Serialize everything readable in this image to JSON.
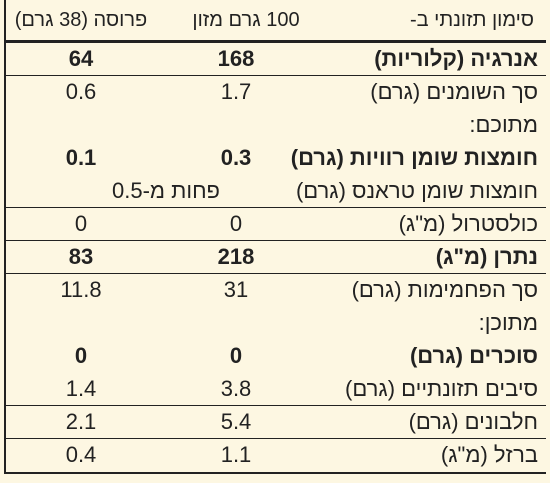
{
  "header": {
    "label": "סימון תזונתי ב-",
    "per100": "100 גרם מזון",
    "perSlice": "פרוסה (38 גרם)"
  },
  "rows": [
    {
      "label": "אנרגיה (קלוריות)",
      "per100": "168",
      "perSlice": "64",
      "bold": true
    },
    {
      "label": "סך השומנים (גרם)",
      "per100": "1.7",
      "perSlice": "0.6"
    },
    {
      "label": "מתוכם:"
    },
    {
      "label": "חומצות שומן רוויות (גרם)",
      "per100": "0.3",
      "perSlice": "0.1",
      "bold": true
    },
    {
      "label": "חומצות שומן טראנס (גרם)",
      "both": "פחות מ-0.5"
    },
    {
      "label": "כולסטרול (מ\"ג)",
      "per100": "0",
      "perSlice": "0"
    },
    {
      "label": "נתרן (מ\"ג)",
      "per100": "218",
      "perSlice": "83",
      "bold": true
    },
    {
      "label": "סך הפחמימות (גרם)",
      "per100": "31",
      "perSlice": "11.8"
    },
    {
      "label": "מתוכן:"
    },
    {
      "label": "סוכרים (גרם)",
      "per100": "0",
      "perSlice": "0",
      "bold": true
    },
    {
      "label": "סיבים תזונתיים (גרם)",
      "per100": "3.8",
      "perSlice": "1.4"
    },
    {
      "label": "חלבונים (גרם)",
      "per100": "5.4",
      "perSlice": "2.1"
    },
    {
      "label": "ברזל (מ\"ג)",
      "per100": "1.1",
      "perSlice": "0.4"
    }
  ]
}
